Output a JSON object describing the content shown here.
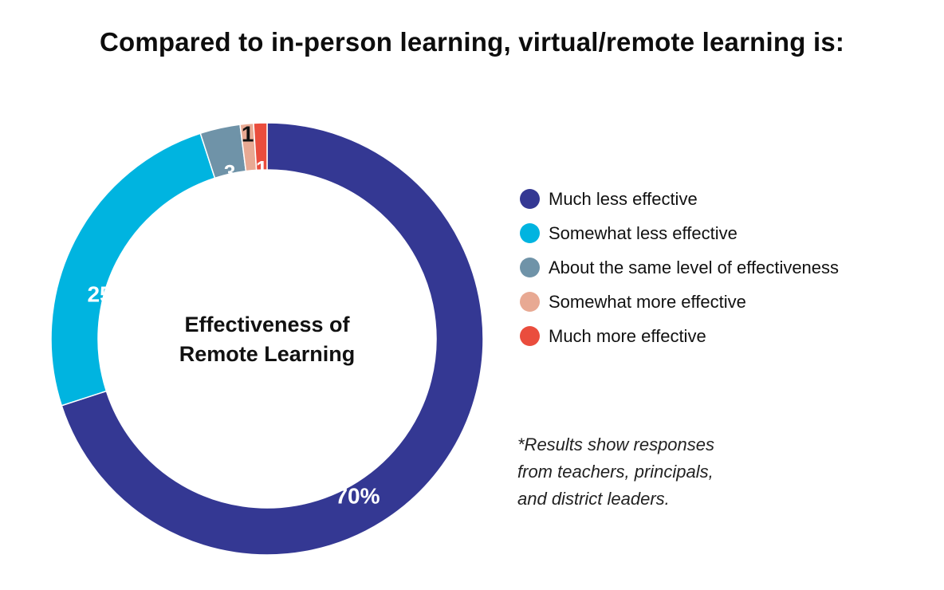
{
  "title": "Compared to in-person learning, virtual/remote learning is:",
  "chart_data": {
    "type": "pie",
    "variant": "donut",
    "center_label": [
      "Effectiveness of",
      "Remote Learning"
    ],
    "slices": [
      {
        "name": "Much less effective",
        "value": 70,
        "label": "70%",
        "color": "#343893"
      },
      {
        "name": "Somewhat less effective",
        "value": 25,
        "label": "25",
        "color": "#00b4e0"
      },
      {
        "name": "About the same level of effectiveness",
        "value": 3,
        "label": "3",
        "color": "#6f93a8"
      },
      {
        "name": "Somewhat more effective",
        "value": 1,
        "label": "1",
        "color": "#e8a993"
      },
      {
        "name": "Much more effective",
        "value": 1,
        "label": "1",
        "color": "#ea4d3d"
      }
    ],
    "legend_position": "right"
  },
  "footnote": [
    "*Results show responses",
    "from teachers, principals,",
    "and district leaders."
  ]
}
